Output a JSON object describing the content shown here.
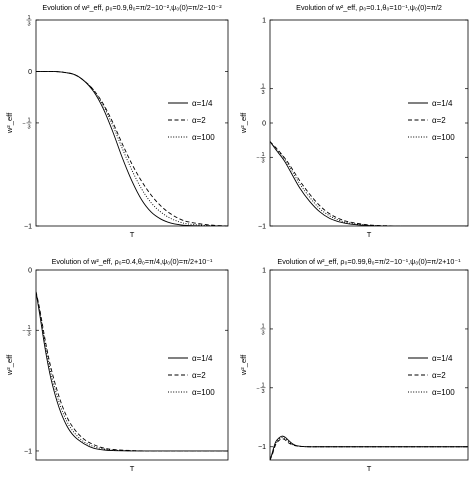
{
  "chart_data": [
    {
      "type": "line",
      "title": "Evolution of w²_eff, ρ₀=0.9,θ₀=π/2−10⁻²,ψ₀(0)=π/2−10⁻²",
      "xlabel": "T",
      "ylabel": "w²_eff",
      "ylim": [
        -1,
        0.333
      ],
      "yticks": [
        {
          "value": 0.333,
          "label": "1/3"
        },
        {
          "value": 0,
          "label": "0"
        },
        {
          "value": -0.333,
          "label": "-1/3"
        },
        {
          "value": -1,
          "label": "-1"
        }
      ],
      "legend_placement": "right",
      "series": [
        {
          "name": "α=1/4",
          "style": "solid",
          "x": [
            0,
            0.08,
            0.14,
            0.2,
            0.25,
            0.3,
            0.35,
            0.4,
            0.45,
            0.5,
            0.55,
            0.6,
            0.65,
            0.7,
            0.75,
            0.8,
            0.9,
            1.0
          ],
          "y": [
            0,
            0,
            -0.005,
            -0.02,
            -0.06,
            -0.13,
            -0.24,
            -0.39,
            -0.56,
            -0.71,
            -0.83,
            -0.91,
            -0.955,
            -0.98,
            -0.992,
            -0.997,
            -1,
            -1
          ]
        },
        {
          "name": "α=2",
          "style": "dashed",
          "x": [
            0,
            0.08,
            0.14,
            0.2,
            0.25,
            0.3,
            0.35,
            0.4,
            0.45,
            0.5,
            0.55,
            0.6,
            0.65,
            0.7,
            0.75,
            0.8,
            0.9,
            1.0
          ],
          "y": [
            0,
            0,
            -0.005,
            -0.02,
            -0.06,
            -0.12,
            -0.21,
            -0.33,
            -0.47,
            -0.6,
            -0.71,
            -0.8,
            -0.87,
            -0.92,
            -0.955,
            -0.975,
            -0.993,
            -1
          ]
        },
        {
          "name": "α=100",
          "style": "dotted",
          "x": [
            0,
            0.08,
            0.14,
            0.2,
            0.25,
            0.3,
            0.35,
            0.4,
            0.45,
            0.5,
            0.55,
            0.6,
            0.65,
            0.7,
            0.75,
            0.8,
            0.9,
            1.0
          ],
          "y": [
            0,
            0,
            -0.005,
            -0.02,
            -0.06,
            -0.12,
            -0.22,
            -0.35,
            -0.5,
            -0.64,
            -0.76,
            -0.85,
            -0.91,
            -0.95,
            -0.975,
            -0.988,
            -0.997,
            -1
          ]
        }
      ]
    },
    {
      "type": "line",
      "title": "Evolution of w²_eff, ρ₀=0.1,θ₀=10⁻¹,ψ₀(0)=π/2",
      "xlabel": "T",
      "ylabel": "w²_eff",
      "ylim": [
        -1,
        1
      ],
      "yticks": [
        {
          "value": 1,
          "label": "1"
        },
        {
          "value": 0.333,
          "label": "1/3"
        },
        {
          "value": 0,
          "label": "0"
        },
        {
          "value": -0.333,
          "label": "-1/3"
        },
        {
          "value": -1,
          "label": "-1"
        }
      ],
      "legend_placement": "right",
      "series": [
        {
          "name": "α=1/4",
          "style": "solid",
          "x": [
            0,
            0.03,
            0.07,
            0.1,
            0.15,
            0.2,
            0.25,
            0.3,
            0.35,
            0.4,
            0.5,
            0.6,
            0.7,
            0.8,
            1.0
          ],
          "y": [
            -0.18,
            -0.26,
            -0.36,
            -0.46,
            -0.63,
            -0.76,
            -0.86,
            -0.925,
            -0.96,
            -0.98,
            -0.996,
            -1,
            -1,
            -1,
            -1
          ]
        },
        {
          "name": "α=2",
          "style": "dashed",
          "x": [
            0,
            0.03,
            0.07,
            0.1,
            0.15,
            0.2,
            0.25,
            0.3,
            0.35,
            0.4,
            0.5,
            0.6,
            0.7,
            0.8,
            1.0
          ],
          "y": [
            -0.18,
            -0.24,
            -0.33,
            -0.41,
            -0.56,
            -0.69,
            -0.8,
            -0.88,
            -0.93,
            -0.96,
            -0.99,
            -0.998,
            -1,
            -1,
            -1
          ]
        },
        {
          "name": "α=100",
          "style": "dotted",
          "x": [
            0,
            0.03,
            0.07,
            0.1,
            0.15,
            0.2,
            0.25,
            0.3,
            0.35,
            0.4,
            0.5,
            0.6,
            0.7,
            0.8,
            1.0
          ],
          "y": [
            -0.18,
            -0.25,
            -0.34,
            -0.43,
            -0.59,
            -0.72,
            -0.83,
            -0.9,
            -0.945,
            -0.97,
            -0.993,
            -0.999,
            -1,
            -1,
            -1
          ]
        }
      ]
    },
    {
      "type": "line",
      "title": "Evolution of w²_eff, ρ₀=0.4,θ₀=π/4,ψ₀(0)=π/2+10⁻¹",
      "xlabel": "T",
      "ylabel": "w²_eff",
      "ylim": [
        -1.05,
        0
      ],
      "yticks": [
        {
          "value": 0,
          "label": "0"
        },
        {
          "value": -0.333,
          "label": "-1/3"
        },
        {
          "value": -1,
          "label": "-1"
        }
      ],
      "legend_placement": "right",
      "series": [
        {
          "name": "α=1/4",
          "style": "solid",
          "x": [
            0,
            0.02,
            0.05,
            0.08,
            0.12,
            0.16,
            0.2,
            0.25,
            0.3,
            0.35,
            0.4,
            0.5,
            0.6,
            0.8,
            1.0
          ],
          "y": [
            -0.12,
            -0.25,
            -0.45,
            -0.61,
            -0.76,
            -0.86,
            -0.92,
            -0.96,
            -0.985,
            -0.994,
            -0.998,
            -1,
            -1,
            -1,
            -1
          ]
        },
        {
          "name": "α=2",
          "style": "dashed",
          "x": [
            0,
            0.02,
            0.05,
            0.08,
            0.12,
            0.16,
            0.2,
            0.25,
            0.3,
            0.35,
            0.4,
            0.5,
            0.6,
            0.8,
            1.0
          ],
          "y": [
            -0.12,
            -0.22,
            -0.4,
            -0.55,
            -0.7,
            -0.81,
            -0.88,
            -0.935,
            -0.965,
            -0.983,
            -0.992,
            -0.998,
            -1,
            -1,
            -1
          ]
        },
        {
          "name": "α=100",
          "style": "dotted",
          "x": [
            0,
            0.02,
            0.05,
            0.08,
            0.12,
            0.16,
            0.2,
            0.25,
            0.3,
            0.35,
            0.4,
            0.5,
            0.6,
            0.8,
            1.0
          ],
          "y": [
            -0.12,
            -0.23,
            -0.42,
            -0.58,
            -0.73,
            -0.835,
            -0.9,
            -0.95,
            -0.975,
            -0.988,
            -0.995,
            -0.999,
            -1,
            -1,
            -1
          ]
        }
      ]
    },
    {
      "type": "line",
      "title": "Evolution of w²_eff, ρ₀=0.99,θ₀=π/2−10⁻¹,ψ₀(0)=π/2+10⁻¹",
      "xlabel": "T",
      "ylabel": "w²_eff",
      "ylim": [
        -1.15,
        1
      ],
      "yticks": [
        {
          "value": 1,
          "label": "1"
        },
        {
          "value": 0.333,
          "label": "1/3"
        },
        {
          "value": -0.333,
          "label": "-1/3"
        },
        {
          "value": -1,
          "label": "-1"
        }
      ],
      "legend_placement": "right",
      "series": [
        {
          "name": "α=1/4",
          "style": "solid",
          "x": [
            0,
            0.01,
            0.02,
            0.03,
            0.045,
            0.06,
            0.075,
            0.09,
            0.11,
            0.13,
            0.16,
            0.2,
            0.25,
            0.3,
            0.4,
            0.6,
            1.0
          ],
          "y": [
            -1.15,
            -1.08,
            -1.0,
            -0.94,
            -0.9,
            -0.88,
            -0.89,
            -0.92,
            -0.96,
            -0.985,
            -0.996,
            -1,
            -1,
            -1,
            -1,
            -1,
            -1
          ]
        },
        {
          "name": "α=2",
          "style": "dashed",
          "x": [
            0,
            0.01,
            0.02,
            0.03,
            0.045,
            0.06,
            0.075,
            0.09,
            0.11,
            0.13,
            0.16,
            0.2,
            0.25,
            0.3,
            0.4,
            0.6,
            1.0
          ],
          "y": [
            -1.15,
            -1.1,
            -1.03,
            -0.97,
            -0.93,
            -0.91,
            -0.92,
            -0.95,
            -0.975,
            -0.99,
            -0.997,
            -1,
            -1,
            -1,
            -1,
            -1,
            -1
          ]
        },
        {
          "name": "α=100",
          "style": "dotted",
          "x": [
            0,
            0.01,
            0.02,
            0.03,
            0.045,
            0.06,
            0.075,
            0.09,
            0.11,
            0.13,
            0.16,
            0.2,
            0.25,
            0.3,
            0.4,
            0.6,
            1.0
          ],
          "y": [
            -1.15,
            -1.09,
            -1.02,
            -0.955,
            -0.915,
            -0.895,
            -0.905,
            -0.935,
            -0.97,
            -0.988,
            -0.997,
            -1,
            -1,
            -1,
            -1,
            -1,
            -1
          ]
        }
      ]
    }
  ]
}
